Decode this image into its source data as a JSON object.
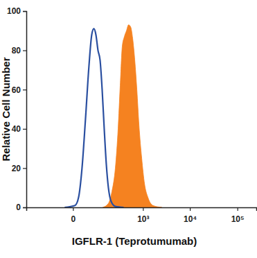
{
  "chart_data": {
    "type": "area",
    "x_label": "IGFLR-1 (Teprotumumab)",
    "y_label": "Relative Cell Number",
    "xlim": [
      -300,
      250000
    ],
    "ylim": [
      0,
      100
    ],
    "xticks": [
      0,
      {
        "value": 1000,
        "label": "10³"
      },
      {
        "value": 10000,
        "label": "10⁴"
      },
      {
        "value": 100000,
        "label": "10⁵"
      }
    ],
    "yticks": [
      0,
      20,
      40,
      60,
      80,
      100
    ],
    "grid": false,
    "series": [
      {
        "type": "line",
        "color": "#2a4fa0",
        "x": [
          -17.4,
          3.7,
          10.8,
          19.2,
          29.1,
          40.8,
          51.8,
          61,
          71.1,
          82.4,
          94.9,
          108.6,
          123.8,
          140.6,
          159.3,
          187,
          237,
          372
        ],
        "values": [
          0,
          1,
          5,
          20,
          45,
          72,
          88,
          91,
          88,
          80,
          75,
          60,
          40,
          22,
          10,
          3,
          0.5,
          0
        ]
      },
      {
        "type": "area",
        "color": "#f58220",
        "x": [
          113,
          159,
          195,
          237,
          276,
          309,
          345,
          386,
          431,
          480,
          535,
          595,
          662,
          736,
          818,
          940,
          1082,
          1285,
          1636,
          2550
        ],
        "values": [
          0,
          2,
          8,
          20,
          40,
          62,
          82,
          87,
          90,
          93,
          92,
          86,
          75,
          60,
          42,
          25,
          12,
          5,
          1,
          0
        ]
      }
    ]
  }
}
